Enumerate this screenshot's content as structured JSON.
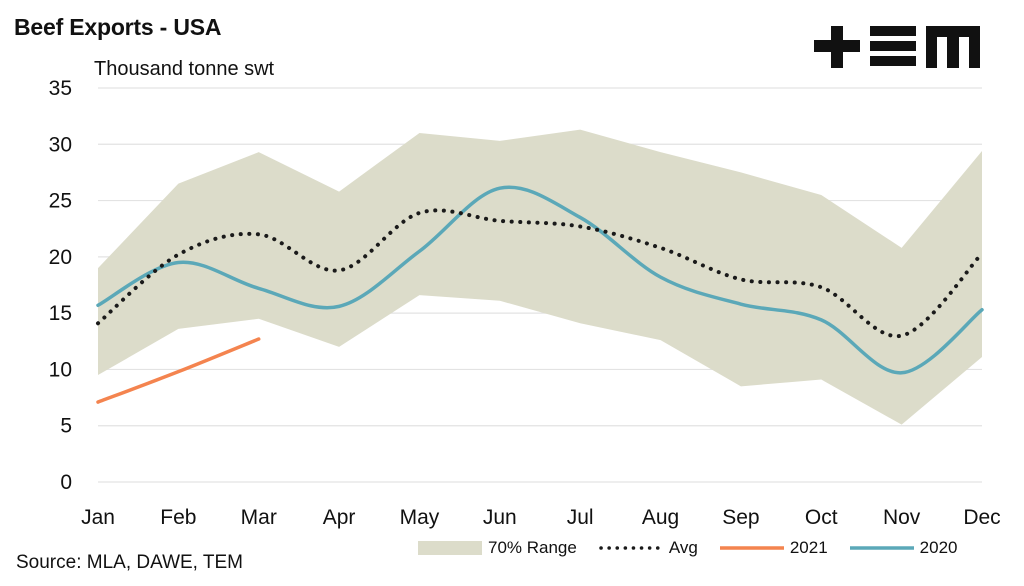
{
  "header": {
    "title": "Beef Exports - USA",
    "logo_text": "TEM"
  },
  "footer": {
    "source": "Source: MLA, DAWE, TEM"
  },
  "colors": {
    "range": "#dcdcca",
    "avg": "#1a1a1a",
    "series_2021": "#f4844f",
    "series_2020": "#5ba8b8",
    "grid": "#e3e3e3"
  },
  "chart_data": {
    "type": "line",
    "ylabel": "Thousand tonne swt",
    "ylim": [
      0,
      35
    ],
    "yticks": [
      0,
      5,
      10,
      15,
      20,
      25,
      30,
      35
    ],
    "grid": true,
    "legend_position": "bottom",
    "categories": [
      "Jan",
      "Feb",
      "Mar",
      "Apr",
      "May",
      "Jun",
      "Jul",
      "Aug",
      "Sep",
      "Oct",
      "Nov",
      "Dec"
    ],
    "range": {
      "name": "70% Range",
      "upper": [
        19.0,
        26.5,
        29.3,
        25.8,
        31.0,
        30.3,
        31.3,
        29.3,
        27.5,
        25.5,
        20.8,
        29.4
      ],
      "lower": [
        9.5,
        13.6,
        14.5,
        12.0,
        16.6,
        16.1,
        14.1,
        12.6,
        8.5,
        9.1,
        5.1,
        11.1
      ]
    },
    "series": [
      {
        "name": "Avg",
        "style": "dotted",
        "values": [
          14.1,
          20.2,
          22.0,
          18.8,
          23.9,
          23.2,
          22.7,
          20.8,
          18.0,
          17.3,
          13.0,
          20.3
        ]
      },
      {
        "name": "2021",
        "style": "solid",
        "values": [
          7.1,
          9.8,
          12.7,
          null,
          null,
          null,
          null,
          null,
          null,
          null,
          null,
          null
        ]
      },
      {
        "name": "2020",
        "style": "solid",
        "values": [
          15.7,
          19.5,
          17.2,
          15.6,
          20.5,
          26.1,
          23.5,
          18.2,
          15.8,
          14.4,
          9.7,
          15.3
        ]
      }
    ]
  }
}
